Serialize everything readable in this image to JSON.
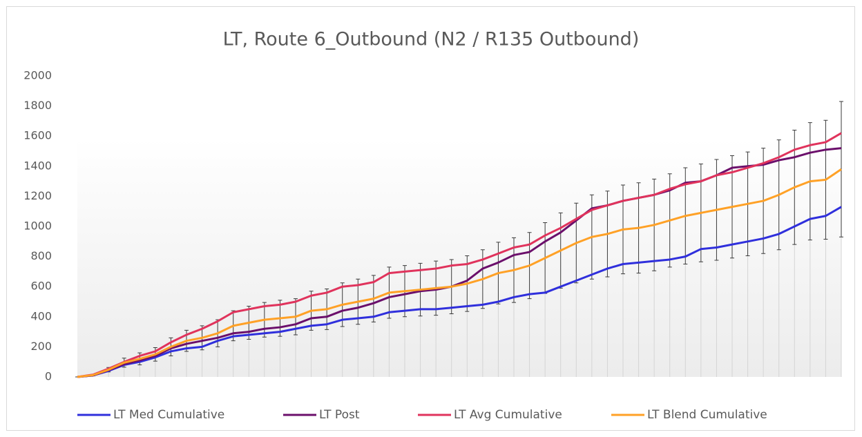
{
  "chart_data": {
    "type": "line",
    "title": "LT, Route 6_Outbound (N2 / R135 Outbound)",
    "categories": [
      null,
      null,
      null,
      null,
      null,
      null,
      null,
      null,
      null,
      null,
      null,
      null,
      null,
      null,
      null,
      null,
      null,
      null,
      null,
      null,
      null,
      null,
      null,
      null,
      null,
      null,
      null,
      null,
      null,
      null,
      null,
      null,
      null,
      null,
      null,
      null,
      null,
      null,
      null,
      null,
      null,
      null,
      null,
      null,
      null,
      null,
      null,
      null,
      null,
      null
    ],
    "ylim": [
      0,
      2000
    ],
    "yticks": [
      0,
      200,
      400,
      600,
      800,
      1000,
      1200,
      1400,
      1600,
      1800,
      2000
    ],
    "legend": "bottom",
    "series": [
      {
        "name": "LT Med Cumulative",
        "color": "#2f2fdc",
        "values": [
          0,
          10,
          40,
          80,
          100,
          130,
          170,
          190,
          200,
          240,
          270,
          280,
          290,
          300,
          320,
          340,
          350,
          380,
          390,
          400,
          430,
          440,
          450,
          450,
          460,
          470,
          480,
          500,
          530,
          550,
          560,
          600,
          640,
          680,
          720,
          750,
          760,
          770,
          780,
          800,
          850,
          860,
          880,
          900,
          920,
          950,
          1000,
          1050,
          1070,
          1130
        ]
      },
      {
        "name": "LT Post",
        "color": "#6b0f6b",
        "values": [
          0,
          10,
          45,
          85,
          110,
          140,
          190,
          220,
          240,
          260,
          290,
          300,
          320,
          330,
          350,
          390,
          400,
          440,
          460,
          490,
          530,
          550,
          570,
          580,
          600,
          640,
          720,
          760,
          810,
          830,
          900,
          960,
          1040,
          1120,
          1140,
          1170,
          1190,
          1210,
          1240,
          1290,
          1300,
          1340,
          1390,
          1400,
          1410,
          1440,
          1460,
          1490,
          1510,
          1520
        ]
      },
      {
        "name": "LT Avg Cumulative",
        "color": "#e0335c",
        "values": [
          0,
          15,
          55,
          100,
          140,
          170,
          230,
          280,
          320,
          370,
          430,
          450,
          470,
          480,
          500,
          540,
          560,
          600,
          610,
          630,
          690,
          700,
          710,
          720,
          740,
          750,
          780,
          820,
          860,
          880,
          940,
          990,
          1050,
          1110,
          1140,
          1170,
          1190,
          1210,
          1250,
          1280,
          1300,
          1340,
          1360,
          1390,
          1420,
          1460,
          1510,
          1540,
          1560,
          1620
        ]
      },
      {
        "name": "LT Blend Cumulative",
        "color": "#ffa126",
        "values": [
          0,
          12,
          48,
          95,
          120,
          150,
          200,
          240,
          260,
          290,
          340,
          360,
          380,
          390,
          400,
          440,
          450,
          480,
          500,
          520,
          560,
          570,
          580,
          590,
          600,
          620,
          650,
          690,
          710,
          740,
          790,
          840,
          890,
          930,
          950,
          980,
          990,
          1010,
          1040,
          1070,
          1090,
          1110,
          1130,
          1150,
          1170,
          1210,
          1260,
          1300,
          1310,
          1380
        ],
        "errors": [
          0,
          5,
          15,
          30,
          40,
          45,
          60,
          70,
          80,
          90,
          100,
          110,
          115,
          120,
          120,
          130,
          135,
          145,
          150,
          155,
          170,
          170,
          175,
          180,
          180,
          185,
          195,
          205,
          215,
          220,
          235,
          250,
          265,
          280,
          285,
          295,
          300,
          305,
          310,
          320,
          325,
          335,
          340,
          345,
          350,
          365,
          380,
          390,
          395,
          450
        ]
      }
    ]
  }
}
